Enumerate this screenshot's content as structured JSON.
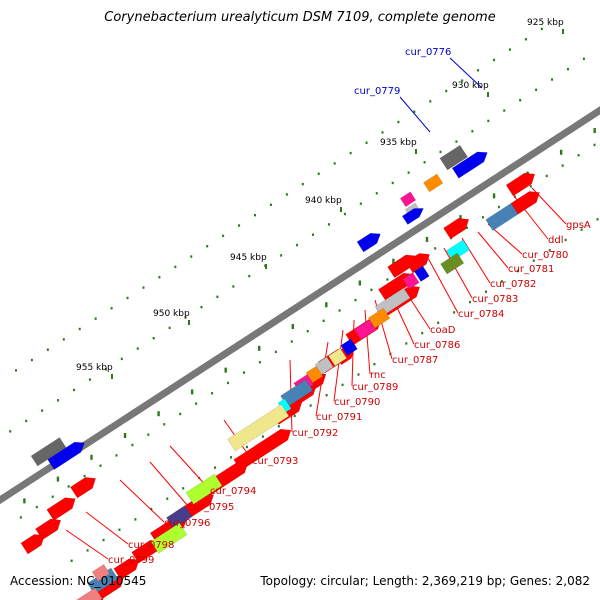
{
  "title": "Corynebacterium urealyticum DSM 7109, complete genome",
  "footer": {
    "accession": "Accession: NC_010545",
    "summary": "Topology: circular; Length: 2,369,219 bp; Genes: 2,082"
  },
  "scale_labels": [
    "925 kbp",
    "930 kbp",
    "935 kbp",
    "940 kbp",
    "945 kbp",
    "950 kbp",
    "955 kbp"
  ],
  "outer_gene_labels": [
    "cur_0776",
    "cur_0779"
  ],
  "inner_gene_labels": [
    "gpsA",
    "ddl",
    "cur_0780",
    "cur_0781",
    "cur_0782",
    "cur_0783",
    "cur_0784",
    "coaD",
    "cur_0786",
    "cur_0787",
    "rnc",
    "cur_0789",
    "cur_0790",
    "cur_0791",
    "cur_0792",
    "cur_0793",
    "cur_0794",
    "cur_0795",
    "cur_0796",
    "cur_0798",
    "cur_0799"
  ],
  "colors": {
    "backbone": "#7a7a7a",
    "forward_cds": "#ff0000",
    "label_inner": "#cc0000",
    "label_outer": "#0000cc",
    "tick": "#2a7a1a",
    "cog_blue": "#0000ee",
    "cog_gray": "#666666",
    "cog_steel": "#4682b4",
    "cog_khaki": "#f0e68c",
    "cog_pink": "#ff1493",
    "cog_silver": "#c0c0c0",
    "cog_orange": "#ff8c00",
    "cog_cyan": "#00ffff",
    "cog_olive": "#6b8e23",
    "cog_lime": "#adff2f",
    "cog_slate": "#483d8b",
    "cog_rose": "#f08080"
  }
}
